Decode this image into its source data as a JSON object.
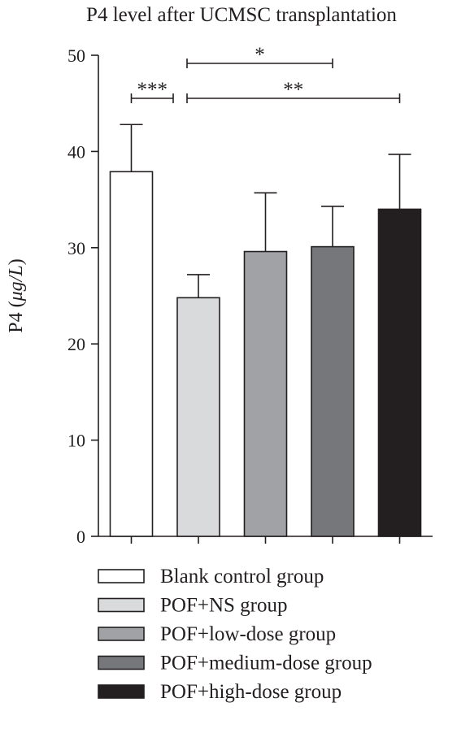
{
  "chart_data": {
    "type": "bar",
    "title": "P4 level after UCMSC transplantation",
    "ylabel": "P4 (μg/L)",
    "ylabel_main": "P4 (",
    "ylabel_unit": "μg/L",
    "ylabel_close": ")",
    "xlabel": "",
    "ylim": [
      0,
      50
    ],
    "yticks": [
      0,
      10,
      20,
      30,
      40,
      50
    ],
    "grid": false,
    "legend_position": "bottom",
    "categories": [
      "Blank control group",
      "POF+NS group",
      "POF+low-dose group",
      "POF+medium-dose group",
      "POF+high-dose group"
    ],
    "values": [
      37.9,
      24.8,
      29.6,
      30.1,
      34.0
    ],
    "errors": [
      4.9,
      2.4,
      6.1,
      4.2,
      5.7
    ],
    "colors": [
      "#ffffff",
      "#d9dadb",
      "#a1a2a5",
      "#76777b",
      "#231f20"
    ],
    "significance": [
      {
        "from": 0,
        "to": 1,
        "label": "***"
      },
      {
        "from": 1,
        "to": 3,
        "label": "*"
      },
      {
        "from": 1,
        "to": 4,
        "label": "**"
      }
    ]
  }
}
